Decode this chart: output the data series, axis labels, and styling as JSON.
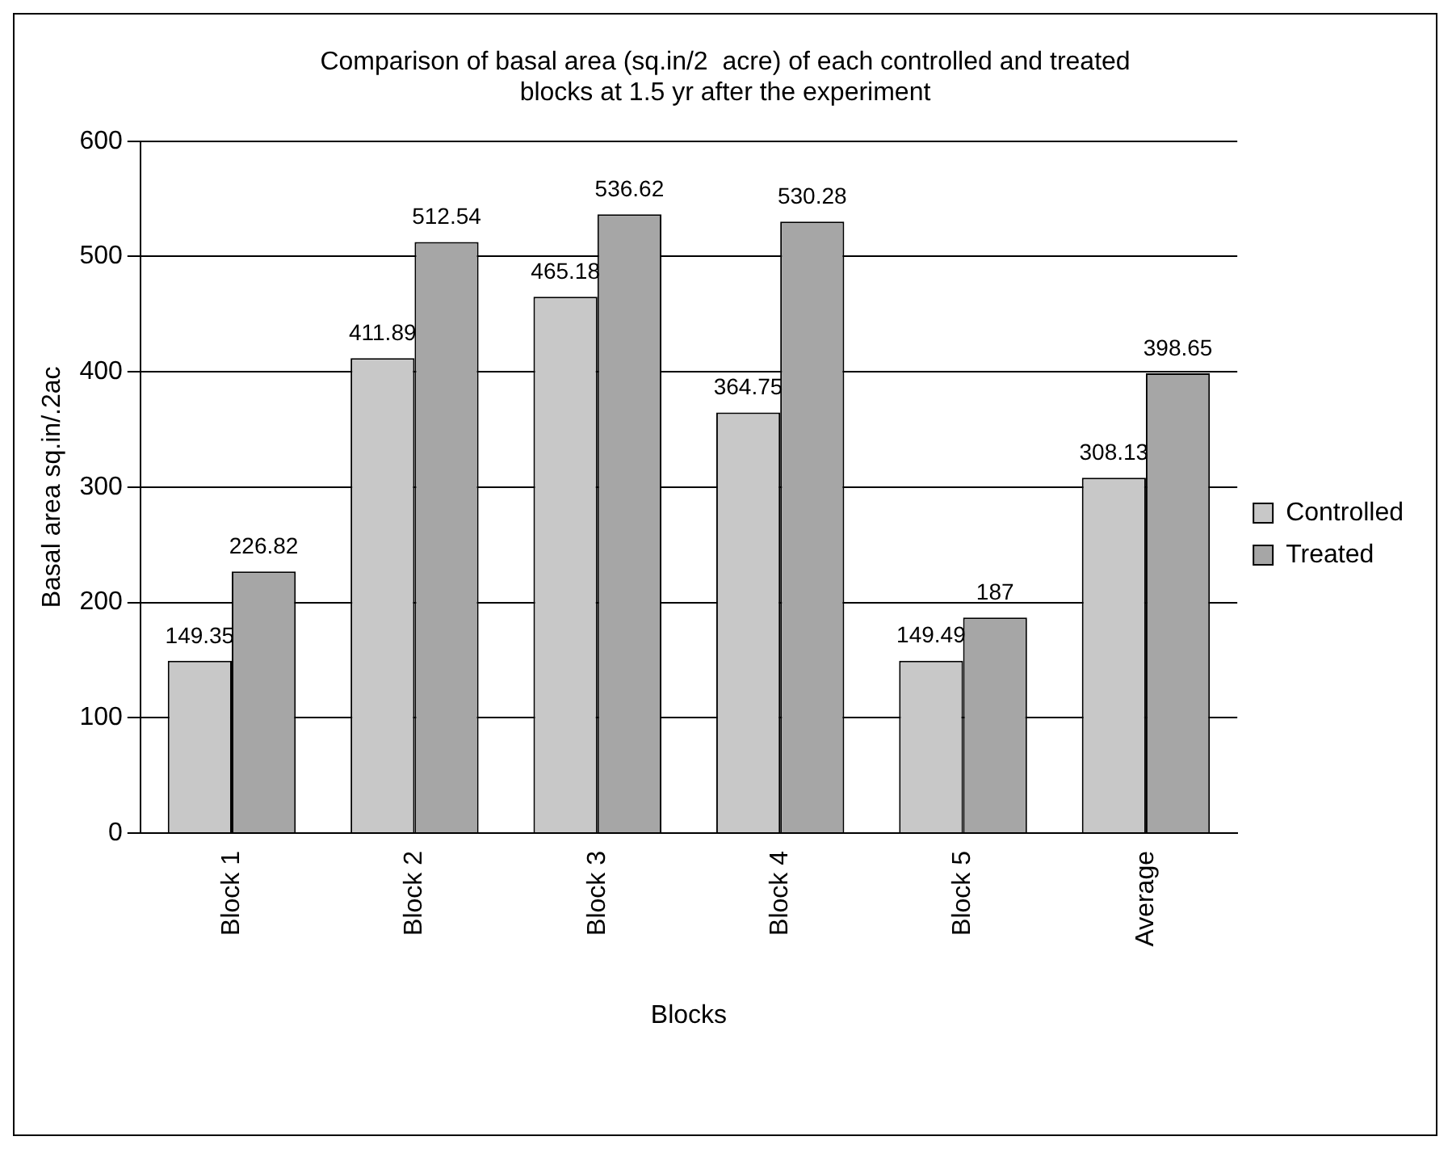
{
  "chart_data": {
    "type": "bar",
    "title": "Comparison of basal area (sq.in/2  acre) of each controlled and treated\nblocks at 1.5 yr after the experiment",
    "xlabel": "Blocks",
    "ylabel": "Basal area sq.in/.2ac",
    "categories": [
      "Block 1",
      "Block 2",
      "Block 3",
      "Block 4",
      "Block 5",
      "Average"
    ],
    "series": [
      {
        "name": "Controlled",
        "color": "#c8c8c8",
        "values": [
          149.35,
          411.89,
          465.18,
          364.75,
          149.49,
          308.13
        ]
      },
      {
        "name": "Treated",
        "color": "#a6a6a6",
        "values": [
          226.82,
          512.54,
          536.62,
          530.28,
          187,
          398.65
        ]
      }
    ],
    "ylim": [
      0,
      600
    ],
    "yticks": [
      0,
      100,
      200,
      300,
      400,
      500,
      600
    ],
    "grid": "y",
    "legend": "right",
    "data_labels": true
  }
}
